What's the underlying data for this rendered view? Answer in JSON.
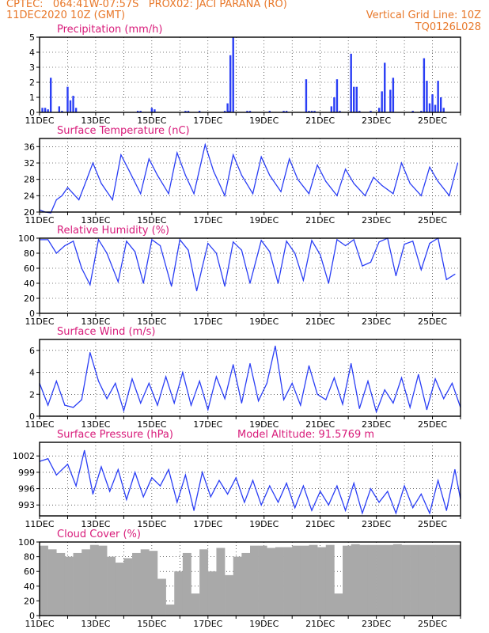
{
  "header": {
    "line1": "CPTEC:   064:41W-07:57S   PROX02: JACI PARANA (RO)",
    "line2_left": "11DEC2020 10Z (GMT)",
    "line2_right": "Vertical Grid Line: 10Z",
    "line3_right": "TQ0126L028"
  },
  "colors": {
    "series": "#2a3ef5",
    "title": "#d81b7a",
    "header": "#e8782a",
    "cloud": "#a9a9a9"
  },
  "chart_data": [
    {
      "type": "bar",
      "title": "Precipitation (mm/h)",
      "x_labels": [
        "11DEC",
        "13DEC",
        "15DEC",
        "17DEC",
        "19DEC",
        "21DEC",
        "23DEC",
        "25DEC"
      ],
      "x_label_days": [
        11,
        13,
        15,
        17,
        19,
        21,
        23,
        25
      ],
      "x_range": [
        11,
        26
      ],
      "ylim": [
        0,
        5
      ],
      "yticks": [
        0,
        1,
        2,
        3,
        4,
        5
      ],
      "x": [
        11.1,
        11.2,
        11.3,
        11.4,
        11.7,
        11.8,
        12.0,
        12.1,
        12.2,
        12.3,
        14.5,
        14.6,
        15.0,
        15.1,
        16.2,
        16.3,
        16.7,
        17.6,
        17.7,
        17.75,
        17.8,
        17.9,
        18.4,
        18.5,
        19.2,
        19.7,
        19.8,
        20.5,
        20.6,
        20.7,
        20.8,
        21.4,
        21.5,
        21.6,
        21.7,
        22.1,
        22.2,
        22.3,
        22.4,
        22.8,
        23.1,
        23.2,
        23.3,
        23.5,
        23.6,
        24.3,
        24.6,
        24.7,
        24.8,
        24.9,
        25.0,
        25.1,
        25.2,
        25.3,
        25.4
      ],
      "values": [
        0.3,
        0.3,
        0.2,
        2.3,
        0.4,
        0.1,
        1.7,
        0.8,
        1.1,
        0.3,
        0.1,
        0.1,
        0.3,
        0.2,
        0.1,
        0.1,
        0.1,
        0.1,
        0.6,
        0.1,
        3.8,
        5.0,
        0.1,
        0.1,
        0.1,
        0.1,
        0.1,
        2.2,
        0.1,
        0.1,
        0.1,
        0.4,
        1.0,
        2.2,
        0.1,
        3.9,
        1.7,
        1.7,
        0.1,
        0.1,
        0.3,
        1.4,
        3.3,
        1.5,
        2.3,
        0.1,
        0.1,
        3.6,
        2.1,
        0.6,
        1.2,
        0.5,
        2.1,
        1.0,
        0.3
      ]
    },
    {
      "type": "line",
      "title": "Surface Temperature (nC)",
      "ylim": [
        20,
        38
      ],
      "yticks": [
        20,
        24,
        28,
        32,
        36
      ],
      "x": [
        11.0,
        11.2,
        11.4,
        11.6,
        11.8,
        12.0,
        12.2,
        12.4,
        12.6,
        12.9,
        13.2,
        13.6,
        13.9,
        14.2,
        14.6,
        14.9,
        15.2,
        15.6,
        15.9,
        16.2,
        16.5,
        16.9,
        17.2,
        17.6,
        17.9,
        18.2,
        18.6,
        18.9,
        19.2,
        19.6,
        19.9,
        20.2,
        20.6,
        20.9,
        21.2,
        21.6,
        21.9,
        22.2,
        22.6,
        22.9,
        23.2,
        23.6,
        23.9,
        24.2,
        24.6,
        24.9,
        25.2,
        25.6,
        25.9
      ],
      "values": [
        20.5,
        20.0,
        19.8,
        23.0,
        24.0,
        26.0,
        24.5,
        23.0,
        26.5,
        32.0,
        27.0,
        23.0,
        34.0,
        30.0,
        24.5,
        33.0,
        29.0,
        24.5,
        34.5,
        29.0,
        24.5,
        36.5,
        30.0,
        24.0,
        34.0,
        29.0,
        24.5,
        33.5,
        29.0,
        25.0,
        33.0,
        28.0,
        24.5,
        31.5,
        27.5,
        24.0,
        30.5,
        27.0,
        24.0,
        28.5,
        26.5,
        24.5,
        32.0,
        27.0,
        24.0,
        31.0,
        27.5,
        24.0,
        32.0
      ]
    },
    {
      "type": "line",
      "title": "Relative Humidity (%)",
      "ylim": [
        0,
        100
      ],
      "yticks": [
        0,
        20,
        40,
        60,
        80,
        100
      ],
      "x": [
        11.0,
        11.3,
        11.6,
        11.9,
        12.2,
        12.5,
        12.8,
        13.1,
        13.4,
        13.8,
        14.1,
        14.4,
        14.7,
        15.0,
        15.3,
        15.7,
        16.0,
        16.3,
        16.6,
        17.0,
        17.3,
        17.6,
        17.9,
        18.2,
        18.5,
        18.9,
        19.2,
        19.5,
        19.8,
        20.1,
        20.4,
        20.7,
        21.0,
        21.3,
        21.6,
        21.9,
        22.2,
        22.5,
        22.8,
        23.1,
        23.4,
        23.7,
        24.0,
        24.3,
        24.6,
        24.9,
        25.2,
        25.5,
        25.8
      ],
      "values": [
        98,
        98,
        80,
        90,
        96,
        60,
        38,
        98,
        80,
        42,
        96,
        82,
        40,
        98,
        90,
        36,
        98,
        84,
        30,
        93,
        80,
        36,
        95,
        84,
        40,
        97,
        82,
        40,
        96,
        80,
        44,
        97,
        78,
        40,
        98,
        90,
        98,
        63,
        68,
        95,
        100,
        50,
        92,
        96,
        58,
        93,
        100,
        45,
        52
      ]
    },
    {
      "type": "line",
      "title": "Surface Wind (m/s)",
      "ylim": [
        0,
        7
      ],
      "yticks": [
        0,
        2,
        4,
        6
      ],
      "x": [
        11.0,
        11.3,
        11.6,
        11.9,
        12.2,
        12.5,
        12.8,
        13.1,
        13.4,
        13.7,
        14.0,
        14.3,
        14.6,
        14.9,
        15.2,
        15.5,
        15.8,
        16.1,
        16.4,
        16.7,
        17.0,
        17.3,
        17.6,
        17.9,
        18.2,
        18.5,
        18.8,
        19.1,
        19.4,
        19.7,
        20.0,
        20.3,
        20.6,
        20.9,
        21.2,
        21.5,
        21.8,
        22.1,
        22.4,
        22.7,
        23.0,
        23.3,
        23.6,
        23.9,
        24.2,
        24.5,
        24.8,
        25.1,
        25.4,
        25.7,
        26.0
      ],
      "values": [
        3.0,
        1.0,
        3.2,
        1.0,
        0.8,
        1.5,
        5.8,
        3.2,
        1.6,
        3.0,
        0.5,
        3.4,
        1.2,
        3.0,
        1.0,
        3.6,
        1.2,
        4.0,
        1.0,
        3.2,
        0.6,
        3.6,
        1.6,
        4.7,
        1.2,
        4.8,
        1.4,
        3.0,
        6.4,
        1.5,
        3.0,
        1.0,
        4.6,
        2.0,
        1.5,
        3.5,
        1.1,
        4.8,
        0.7,
        3.2,
        0.4,
        2.4,
        1.2,
        3.5,
        0.8,
        3.8,
        0.6,
        3.4,
        1.6,
        3.0,
        0.8
      ]
    },
    {
      "type": "line",
      "title": "Surface Pressure (hPa)",
      "annotation": "Model Altitude: 91.5769 m",
      "ylim": [
        991,
        1004.5
      ],
      "yticks": [
        993,
        996,
        999,
        1002
      ],
      "x": [
        11.0,
        11.3,
        11.6,
        12.0,
        12.3,
        12.6,
        12.9,
        13.2,
        13.5,
        13.8,
        14.1,
        14.4,
        14.7,
        15.0,
        15.3,
        15.6,
        15.9,
        16.2,
        16.5,
        16.8,
        17.1,
        17.4,
        17.7,
        18.0,
        18.3,
        18.6,
        18.9,
        19.2,
        19.5,
        19.8,
        20.1,
        20.4,
        20.7,
        21.0,
        21.3,
        21.6,
        21.9,
        22.2,
        22.5,
        22.8,
        23.1,
        23.4,
        23.7,
        24.0,
        24.3,
        24.6,
        24.9,
        25.2,
        25.5,
        25.8,
        26.0
      ],
      "values": [
        1001,
        1001.5,
        998.5,
        1000.5,
        996.5,
        1003.0,
        995.0,
        1000.0,
        995.5,
        999.5,
        994.0,
        999.0,
        994.5,
        998.0,
        996.5,
        999.5,
        993.5,
        998.5,
        992.0,
        999.0,
        994.5,
        997.5,
        995.0,
        998.0,
        993.5,
        997.5,
        993.0,
        996.5,
        993.5,
        997.0,
        992.5,
        996.5,
        992.0,
        995.5,
        993.0,
        996.5,
        992.0,
        997.0,
        991.5,
        996.0,
        993.5,
        995.5,
        991.5,
        996.5,
        992.5,
        995.0,
        991.5,
        997.5,
        992.0,
        999.5,
        994.0
      ]
    },
    {
      "type": "bar",
      "title": "Cloud Cover (%)",
      "ylim": [
        0,
        100
      ],
      "yticks": [
        0,
        20,
        40,
        60,
        80,
        100
      ],
      "x": [
        11.0,
        11.3,
        11.6,
        11.9,
        12.2,
        12.5,
        12.8,
        13.1,
        13.4,
        13.7,
        14.0,
        14.3,
        14.6,
        14.9,
        15.2,
        15.5,
        15.8,
        16.1,
        16.4,
        16.7,
        17.0,
        17.3,
        17.6,
        17.9,
        18.2,
        18.5,
        18.8,
        19.1,
        19.4,
        19.7,
        20.0,
        20.3,
        20.6,
        20.9,
        21.2,
        21.5,
        21.8,
        22.1,
        22.4,
        22.7,
        23.0,
        23.3,
        23.6,
        23.9,
        24.2,
        24.5,
        24.8,
        25.1,
        25.4,
        25.7
      ],
      "values": [
        95,
        90,
        85,
        80,
        85,
        90,
        96,
        95,
        80,
        72,
        78,
        85,
        90,
        88,
        50,
        15,
        60,
        85,
        30,
        90,
        60,
        92,
        55,
        80,
        85,
        95,
        95,
        92,
        93,
        93,
        95,
        95,
        96,
        93,
        96,
        30,
        95,
        97,
        96,
        96,
        96,
        96,
        97,
        96,
        96,
        96,
        96,
        96,
        96,
        96
      ]
    }
  ]
}
